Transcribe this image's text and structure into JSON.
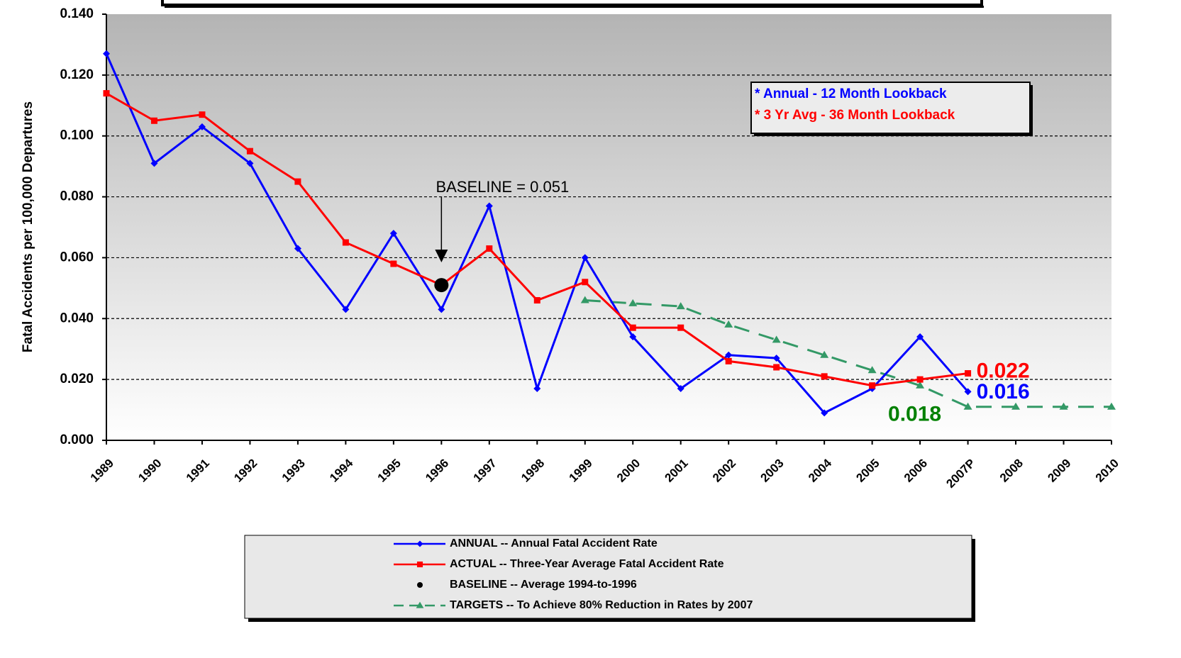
{
  "chart_data": {
    "type": "line",
    "y_label": "Fatal Accidents per 100,000 Departures",
    "categories": [
      "1989",
      "1990",
      "1991",
      "1992",
      "1993",
      "1994",
      "1995",
      "1996",
      "1997",
      "1998",
      "1999",
      "2000",
      "2001",
      "2002",
      "2003",
      "2004",
      "2005",
      "2006",
      "2007P",
      "2008",
      "2009",
      "2010"
    ],
    "series": [
      {
        "name": "ANNUAL -- Annual Fatal Accident Rate",
        "color": "#0000ff",
        "marker": "diamond",
        "dash": false,
        "values": [
          0.127,
          0.091,
          0.103,
          0.091,
          0.063,
          0.043,
          0.068,
          0.043,
          0.077,
          0.017,
          0.06,
          0.034,
          0.017,
          0.028,
          0.027,
          0.009,
          0.017,
          0.034,
          0.016,
          null,
          null,
          null
        ],
        "value_labels": [
          null,
          null,
          null,
          null,
          null,
          null,
          null,
          null,
          null,
          null,
          null,
          null,
          null,
          null,
          null,
          null,
          null,
          null,
          "0.016",
          null,
          null,
          null
        ]
      },
      {
        "name": "ACTUAL -- Three-Year Average Fatal Accident Rate",
        "color": "#ff0000",
        "marker": "square",
        "dash": false,
        "values": [
          0.114,
          0.105,
          0.107,
          0.095,
          0.085,
          0.065,
          0.058,
          0.051,
          0.063,
          0.046,
          0.052,
          0.037,
          0.037,
          0.026,
          0.024,
          0.021,
          0.018,
          0.02,
          0.022,
          null,
          null,
          null
        ],
        "value_labels": [
          null,
          null,
          null,
          null,
          null,
          null,
          null,
          null,
          null,
          null,
          null,
          null,
          null,
          null,
          null,
          null,
          null,
          null,
          "0.022",
          null,
          null,
          null
        ]
      },
      {
        "name": "BASELINE -- Average 1994-to-1996",
        "color": "#000000",
        "marker": "circle",
        "line": false,
        "values": [
          null,
          null,
          null,
          null,
          null,
          null,
          null,
          0.051,
          null,
          null,
          null,
          null,
          null,
          null,
          null,
          null,
          null,
          null,
          null,
          null,
          null,
          null
        ]
      },
      {
        "name": "TARGETS -- To Achieve 80% Reduction in Rates by 2007",
        "color": "#339966",
        "label_color": "#008000",
        "marker": "triangle",
        "dash": true,
        "values": [
          null,
          null,
          null,
          null,
          null,
          null,
          null,
          null,
          null,
          null,
          0.046,
          0.045,
          0.044,
          0.038,
          0.033,
          0.028,
          0.023,
          0.018,
          0.011,
          0.011,
          0.011,
          0.011
        ],
        "value_labels": [
          null,
          null,
          null,
          null,
          null,
          null,
          null,
          null,
          null,
          null,
          null,
          null,
          null,
          null,
          null,
          null,
          null,
          "0.018",
          null,
          null,
          null,
          null
        ]
      }
    ],
    "ylim": [
      0,
      0.14
    ],
    "yticks": [
      {
        "value": 0,
        "label": "0.000"
      },
      {
        "value": 0.02,
        "label": "0.020"
      },
      {
        "value": 0.04,
        "label": "0.040"
      },
      {
        "value": 0.06,
        "label": "0.060"
      },
      {
        "value": 0.08,
        "label": "0.080"
      },
      {
        "value": 0.1,
        "label": "0.100"
      },
      {
        "value": 0.12,
        "label": "0.120"
      },
      {
        "value": 0.14,
        "label": "0.140"
      }
    ],
    "grid": true,
    "annotation": {
      "text": "BASELINE = 0.051",
      "category_index": 7
    },
    "notes": [
      {
        "text": "* Annual - 12 Month Lookback",
        "color": "#0000ff"
      },
      {
        "text": "* 3 Yr Avg - 36 Month Lookback",
        "color": "#ff0000"
      }
    ],
    "legend": "bottom"
  }
}
